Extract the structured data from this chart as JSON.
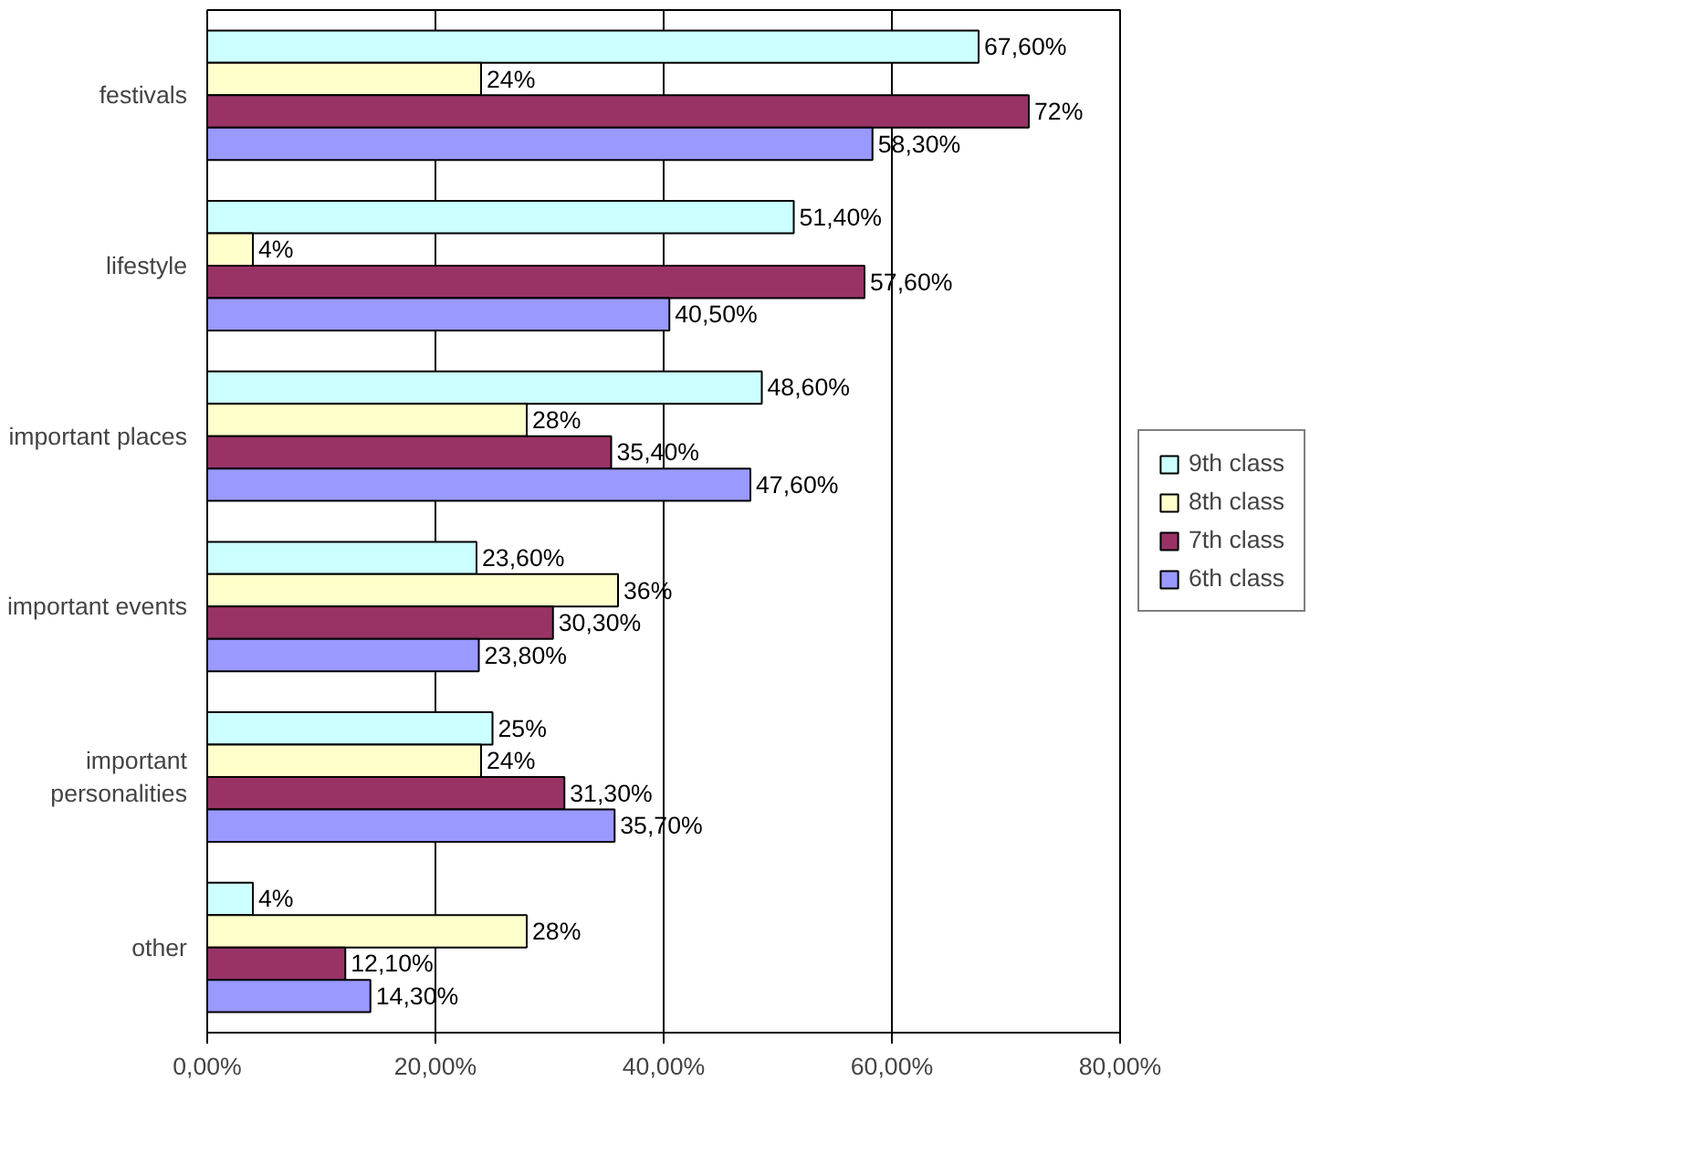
{
  "chart_data": {
    "type": "bar",
    "orientation": "horizontal",
    "categories": [
      "festivals",
      "lifestyle",
      "important places",
      "important events",
      "important personalities",
      "other"
    ],
    "series": [
      {
        "name": "9th class",
        "color": "#ccffff",
        "values": [
          67.6,
          51.4,
          48.6,
          23.6,
          25,
          4
        ],
        "value_labels": [
          "67,60%",
          "51,40%",
          "48,60%",
          "23,60%",
          "25%",
          "4%"
        ]
      },
      {
        "name": "8th class",
        "color": "#ffffcc",
        "values": [
          24,
          4,
          28,
          36,
          24,
          28
        ],
        "value_labels": [
          "24%",
          "4%",
          "28%",
          "36%",
          "24%",
          "28%"
        ]
      },
      {
        "name": "7th class",
        "color": "#993366",
        "values": [
          72,
          57.6,
          35.4,
          30.3,
          31.3,
          12.1
        ],
        "value_labels": [
          "72%",
          "57,60%",
          "35,40%",
          "30,30%",
          "31,30%",
          "12,10%"
        ]
      },
      {
        "name": "6th class",
        "color": "#9999ff",
        "values": [
          58.3,
          40.5,
          47.6,
          23.8,
          35.7,
          14.3
        ],
        "value_labels": [
          "58,30%",
          "40,50%",
          "47,60%",
          "23,80%",
          "35,70%",
          "14,30%"
        ]
      }
    ],
    "xlim": [
      0,
      80
    ],
    "xticks": [
      {
        "value": 0,
        "label": "0,00%"
      },
      {
        "value": 20,
        "label": "20,00%"
      },
      {
        "value": 40,
        "label": "40,00%"
      },
      {
        "value": 60,
        "label": "60,00%"
      },
      {
        "value": 80,
        "label": "80,00%"
      }
    ],
    "grid": "x",
    "legend": "right"
  }
}
